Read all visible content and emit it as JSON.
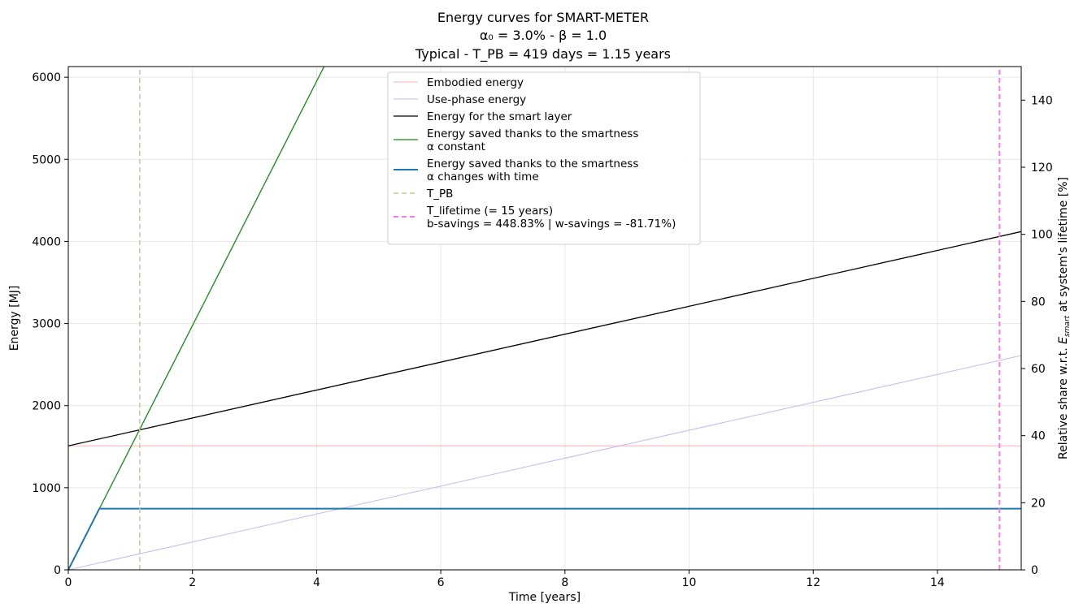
{
  "chart_data": {
    "type": "line",
    "title_lines": [
      "Energy curves for SMART-METER",
      "α₀ = 3.0% - β = 1.0",
      "Typical - T_PB = 419 days  = 1.15 years"
    ],
    "xlabel": "Time [years]",
    "ylabel": "Energy [MJ]",
    "y2label_prefix": "Relative share w.r.t. ",
    "y2label_var": "E",
    "y2label_sub": "smart",
    "y2label_suffix": " at system's lifetime [%]",
    "xlim": [
      0,
      15.35
    ],
    "ylim": [
      0,
      6130
    ],
    "y2lim": [
      0,
      150
    ],
    "x_ticks": [
      0,
      2,
      4,
      6,
      8,
      10,
      12,
      14
    ],
    "y_ticks": [
      0,
      1000,
      2000,
      3000,
      4000,
      5000,
      6000
    ],
    "y2_ticks": [
      0,
      20,
      40,
      60,
      80,
      100,
      120,
      140
    ],
    "grid": true,
    "legend_position": "top-center",
    "series": [
      {
        "name": "Embodied energy",
        "color": "#f4b3b3",
        "width": 1,
        "dash": "",
        "x": [
          0,
          15.35
        ],
        "y": [
          1510,
          1510
        ]
      },
      {
        "name": "Use-phase energy",
        "color": "#c5b6f5",
        "width": 1,
        "dash": "",
        "x": [
          0,
          15.35
        ],
        "y": [
          0,
          2610
        ]
      },
      {
        "name": "Energy for the smart layer",
        "color": "#000000",
        "width": 1.3,
        "dash": "",
        "x": [
          0,
          15.35
        ],
        "y": [
          1510,
          4120
        ]
      },
      {
        "name": "Energy saved thanks to the smartness\nα constant",
        "color": "#138a13",
        "width": 1.3,
        "dash": "",
        "x": [
          0,
          4.12
        ],
        "y": [
          0,
          6130
        ]
      },
      {
        "name": "Energy saved thanks to the smartness\nα changes with time",
        "color": "#1f77b4",
        "width": 2,
        "dash": "",
        "x": [
          0,
          0.5,
          15.35
        ],
        "y": [
          0,
          745,
          745
        ]
      },
      {
        "name": "T_PB",
        "color": "#bccf8e",
        "width": 1.5,
        "dash": "6,4",
        "x": [
          1.15,
          1.15
        ],
        "y": [
          0,
          6130
        ]
      },
      {
        "name": "T_lifetime (= 15 years)\nb-savings = 448.83% | w-savings = -81.71%)",
        "color": "#ff77ee",
        "width": 2,
        "dash": "6,4",
        "x": [
          15,
          15
        ],
        "y": [
          0,
          6130
        ]
      }
    ]
  }
}
